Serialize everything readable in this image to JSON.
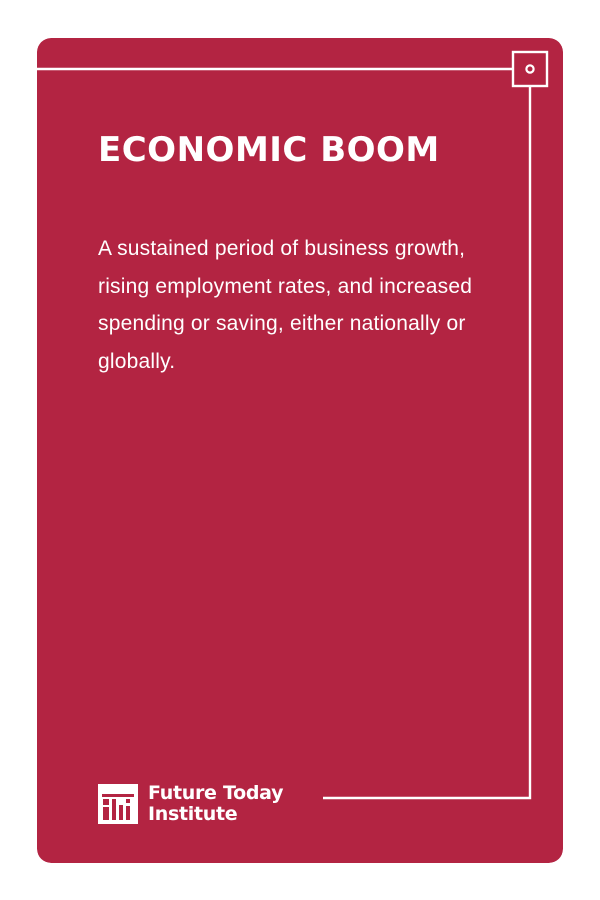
{
  "card": {
    "title": "ECONOMIC BOOM",
    "definition": "A sustained period of business growth, rising employment rates, and increased spending or saving, either nationally or globally.",
    "colors": {
      "background": "#b32442",
      "text": "#ffffff",
      "line": "#ffffff"
    }
  },
  "brand": {
    "name_line1": "Future Today",
    "name_line2": "Institute",
    "logo_icon": "fti-logo-icon"
  }
}
